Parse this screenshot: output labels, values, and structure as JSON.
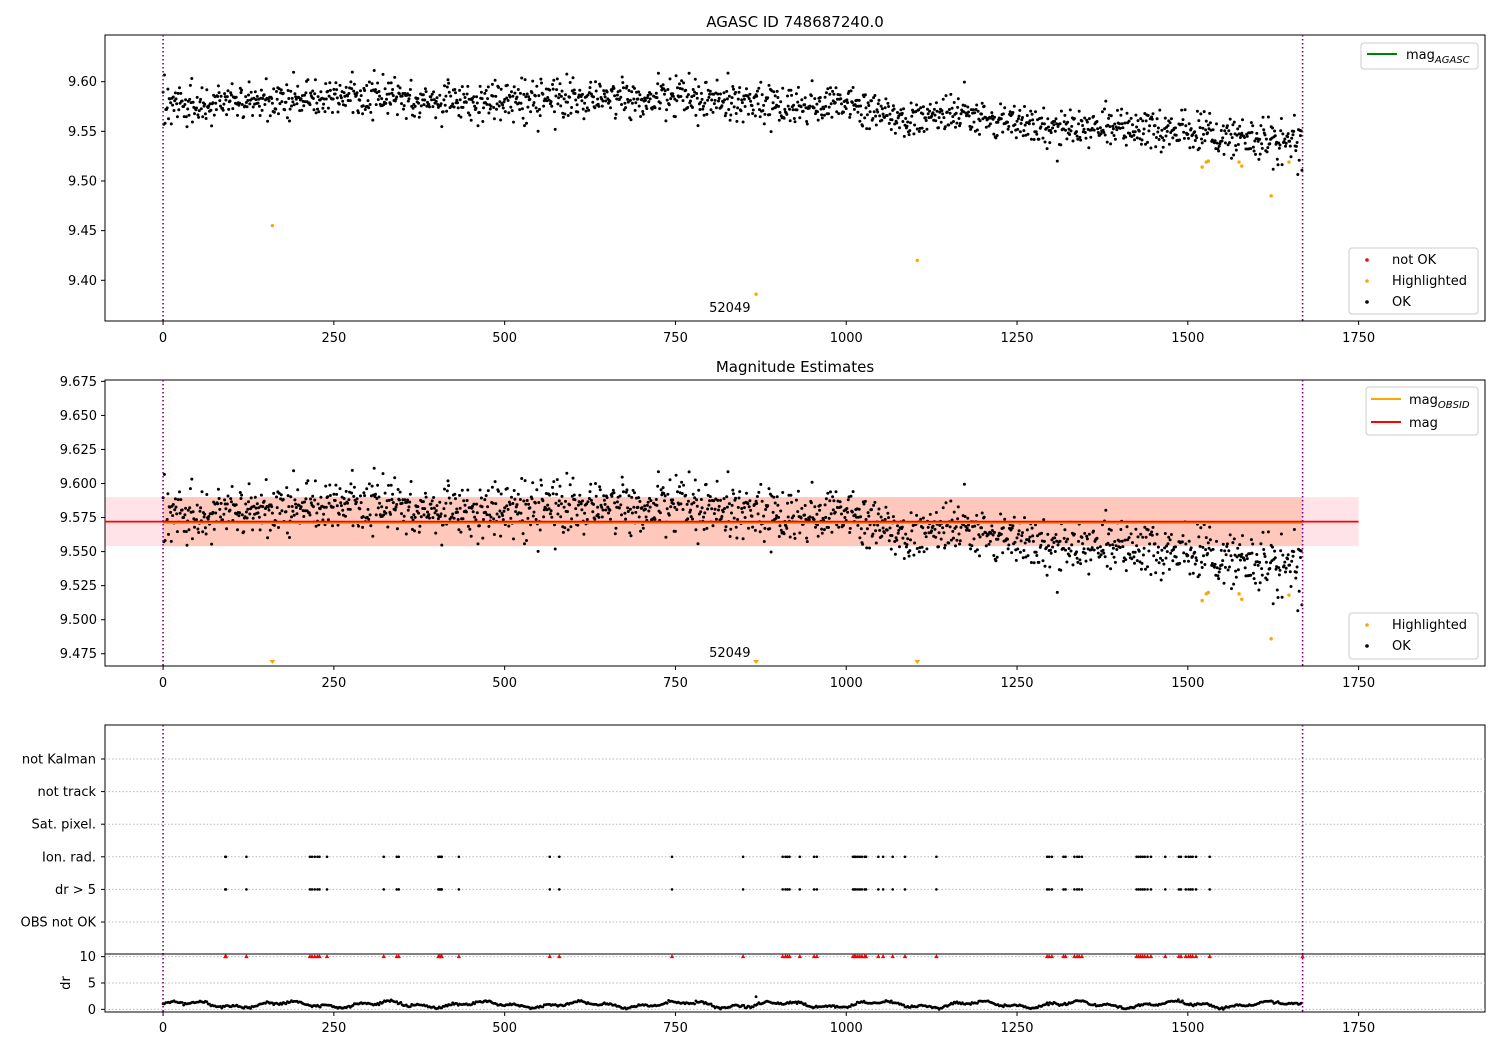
{
  "figure": {
    "title": "AGASC ID 748687240.0"
  },
  "colors": {
    "ok": "#000000",
    "highlighted": "#ffa500",
    "not_ok": "#ff0000",
    "mag_agasc_line": "#008000",
    "mag_obsid_line": "#ffa500",
    "mag_line": "#ff0000",
    "obs_boundary": "#800080",
    "mag_band": "#ffc0cb",
    "obs_band": "#ffa07a"
  },
  "chart_data": [
    {
      "id": "panel1",
      "type": "scatter",
      "title": "AGASC ID 748687240.0",
      "xlabel": "",
      "ylabel": "",
      "xlim": [
        -85,
        1935
      ],
      "ylim": [
        9.359,
        9.647
      ],
      "xticks": [
        0,
        250,
        500,
        750,
        1000,
        1250,
        1500,
        1750
      ],
      "yticks": [
        9.4,
        9.45,
        9.5,
        9.55,
        9.6
      ],
      "ytick_labels": [
        "9.40",
        "9.45",
        "9.50",
        "9.55",
        "9.60"
      ],
      "obs_boundaries": [
        0,
        1668
      ],
      "obs_label": {
        "text": "52049",
        "x": 834
      },
      "legend_lines": [
        {
          "label_main": "mag",
          "label_sub": "AGASC",
          "color": "#008000"
        }
      ],
      "legend_markers": [
        {
          "label": "not OK",
          "color": "#ff0000"
        },
        {
          "label": "Highlighted",
          "color": "#ffa500"
        },
        {
          "label": "OK",
          "color": "#000000"
        }
      ],
      "trend": [
        [
          0,
          9.576
        ],
        [
          250,
          9.583
        ],
        [
          500,
          9.582
        ],
        [
          750,
          9.584
        ],
        [
          900,
          9.578
        ],
        [
          1000,
          9.576
        ],
        [
          1100,
          9.562
        ],
        [
          1200,
          9.565
        ],
        [
          1300,
          9.554
        ],
        [
          1400,
          9.555
        ],
        [
          1500,
          9.549
        ],
        [
          1600,
          9.542
        ],
        [
          1668,
          9.543
        ]
      ],
      "noise": 0.011,
      "n_points": 1668,
      "highlighted_points": [
        [
          160,
          9.455
        ],
        [
          868,
          9.386
        ],
        [
          1104,
          9.42
        ],
        [
          1521,
          9.514
        ],
        [
          1527,
          9.519
        ],
        [
          1530,
          9.52
        ],
        [
          1575,
          9.519
        ],
        [
          1579,
          9.515
        ],
        [
          1622,
          9.485
        ],
        [
          1648,
          9.519
        ]
      ]
    },
    {
      "id": "panel2",
      "type": "scatter",
      "title": "Magnitude Estimates",
      "xlabel": "",
      "ylabel": "",
      "xlim": [
        -85,
        1935
      ],
      "ylim": [
        9.466,
        9.676
      ],
      "xticks": [
        0,
        250,
        500,
        750,
        1000,
        1250,
        1500,
        1750
      ],
      "yticks": [
        9.475,
        9.5,
        9.525,
        9.55,
        9.575,
        9.6,
        9.625,
        9.65,
        9.675
      ],
      "ytick_labels": [
        "9.475",
        "9.500",
        "9.525",
        "9.550",
        "9.575",
        "9.600",
        "9.625",
        "9.650",
        "9.675"
      ],
      "obs_boundaries": [
        0,
        1668
      ],
      "obs_label": {
        "text": "52049",
        "x": 834
      },
      "mag": 9.572,
      "mag_band": [
        9.554,
        9.59
      ],
      "mag_line_range": [
        -85,
        1750
      ],
      "mag_obsid": 9.571,
      "obs_band_range": [
        0,
        1668
      ],
      "legend_lines": [
        {
          "label_main": "mag",
          "label_sub": "OBSID",
          "color": "#ffa500"
        },
        {
          "label_main": "mag",
          "label_sub": "",
          "color": "#ff0000"
        }
      ],
      "legend_markers": [
        {
          "label": "Highlighted",
          "color": "#ffa500"
        },
        {
          "label": "OK",
          "color": "#000000"
        }
      ],
      "highlighted_points": [
        [
          1521,
          9.514
        ],
        [
          1527,
          9.519
        ],
        [
          1530,
          9.52
        ],
        [
          1575,
          9.519
        ],
        [
          1579,
          9.515
        ],
        [
          1622,
          9.486
        ],
        [
          1648,
          9.518
        ]
      ],
      "clipped_low_markers": [
        160,
        868,
        1104
      ]
    },
    {
      "id": "panel3",
      "type": "scatter",
      "xlabel": "",
      "ylabel": "",
      "xlim": [
        -85,
        1935
      ],
      "xticks": [
        0,
        250,
        500,
        750,
        1000,
        1250,
        1500,
        1750
      ],
      "obs_boundaries": [
        0,
        1668
      ],
      "flag_rows": [
        "not Kalman",
        "not track",
        "Sat. pixel.",
        "Ion. rad.",
        "dr > 5",
        "OBS not OK"
      ],
      "flag_times": [
        91,
        92,
        122,
        215,
        218,
        222,
        226,
        229,
        240,
        323,
        342,
        345,
        403,
        405,
        407,
        408,
        433,
        566,
        580,
        745,
        849,
        907,
        911,
        914,
        917,
        932,
        953,
        957,
        1010,
        1012,
        1014,
        1017,
        1020,
        1023,
        1027,
        1029,
        1047,
        1054,
        1068,
        1086,
        1132,
        1294,
        1297,
        1301,
        1318,
        1321,
        1334,
        1338,
        1341,
        1345,
        1425,
        1428,
        1431,
        1434,
        1437,
        1441,
        1446,
        1467,
        1487,
        1490,
        1497,
        1501,
        1504,
        1507,
        1512,
        1532
      ],
      "dr_ylabel": "dr",
      "dr_yticks": [
        0,
        5,
        10
      ],
      "dr_ylim": [
        -0.5,
        10.5
      ]
    }
  ]
}
